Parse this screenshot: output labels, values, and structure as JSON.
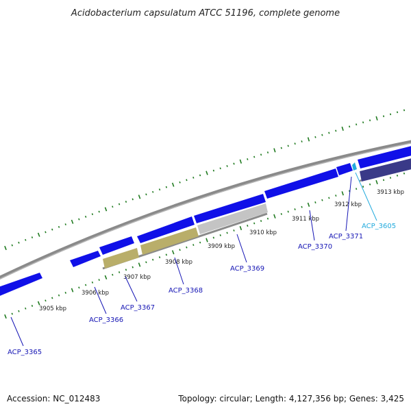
{
  "title": "Acidobacterium capsulatum ATCC 51196, complete genome",
  "footer": {
    "accession": "Accession: NC_012483",
    "summary": "Topology: circular; Length: 4,127,356 bp; Genes: 3,425"
  },
  "colors": {
    "forward_gene": "#1010e8",
    "reverse_gene": "#3a3a88",
    "tan_feature": "#b9ae6a",
    "gray_feature": "#c4c4c4",
    "backbone": "#8a8a8a",
    "tick": "#1f7a1f",
    "label_blue": "#1414b4",
    "label_cyan": "#22aadd"
  },
  "tick_labels": [
    {
      "text": "3905 kbp"
    },
    {
      "text": "3906 kbp"
    },
    {
      "text": "3907 kbp"
    },
    {
      "text": "3908 kbp"
    },
    {
      "text": "3909 kbp"
    },
    {
      "text": "3910 kbp"
    },
    {
      "text": "3911 kbp"
    },
    {
      "text": "3912 kbp"
    },
    {
      "text": "3913 kbp"
    }
  ],
  "genes": [
    {
      "label": "ACP_3365",
      "color": "label_blue"
    },
    {
      "label": "ACP_3366",
      "color": "label_blue"
    },
    {
      "label": "ACP_3367",
      "color": "label_blue"
    },
    {
      "label": "ACP_3368",
      "color": "label_blue"
    },
    {
      "label": "ACP_3369",
      "color": "label_blue"
    },
    {
      "label": "ACP_3370",
      "color": "label_blue"
    },
    {
      "label": "ACP_3371",
      "color": "label_blue"
    },
    {
      "label": "ACP_3605",
      "color": "label_cyan"
    }
  ]
}
